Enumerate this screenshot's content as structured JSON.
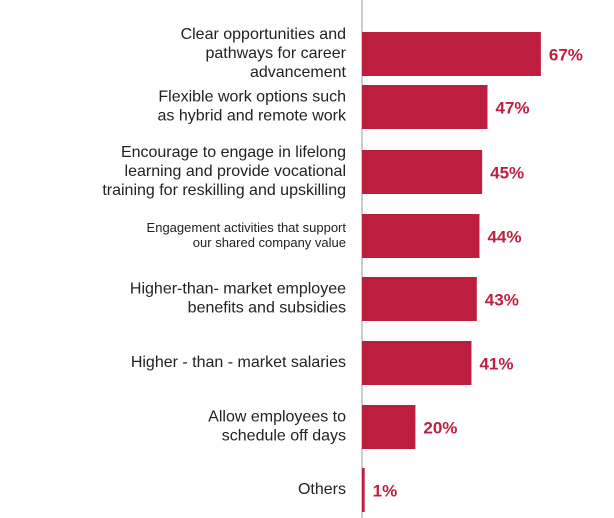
{
  "chart_data": {
    "type": "bar",
    "orientation": "horizontal",
    "color": "#be1e3d",
    "categories": [
      [
        "Clear opportunities and",
        "pathways for career",
        "advancement"
      ],
      [
        "Flexible work options such",
        "as hybrid and remote work"
      ],
      [
        "Encourage to engage in lifelong",
        "learning and provide vocational",
        "training for reskilling and upskilling"
      ],
      [
        "Engagement activities that support",
        "our shared company value"
      ],
      [
        "Higher-than- market employee",
        "benefits and subsidies"
      ],
      [
        "Higher - than - market salaries"
      ],
      [
        "Allow employees to",
        "schedule off days"
      ],
      [
        "Others"
      ]
    ],
    "values": [
      67,
      47,
      45,
      44,
      43,
      41,
      20,
      1
    ],
    "value_labels": [
      "67%",
      "47%",
      "45%",
      "44%",
      "43%",
      "41%",
      "20%",
      "1%"
    ]
  }
}
